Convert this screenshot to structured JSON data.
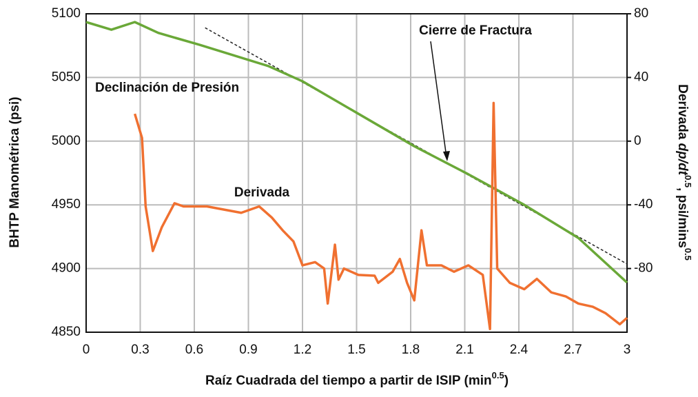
{
  "chart_data": {
    "type": "line",
    "xlabel": [
      "Raíz Cuadrada del tiempo a partir de ISIP (min",
      "0.5",
      ")"
    ],
    "ylabel": "BHTP Manométrica (psi)",
    "y2label": [
      "Derivada ",
      "dp/dt",
      "0.5",
      ", psi/mins",
      "0.5"
    ],
    "xlim": [
      0,
      3
    ],
    "xticks": [
      0,
      0.3,
      0.6,
      0.9,
      1.2,
      1.5,
      1.8,
      2.1,
      2.4,
      2.7,
      3
    ],
    "ylim": [
      4850,
      5100
    ],
    "yticks": [
      4850,
      4900,
      4950,
      5000,
      5050,
      5100
    ],
    "y2lim": [
      -120,
      80
    ],
    "y2ticks": [
      -80,
      -40,
      0,
      40,
      80
    ],
    "grid": true,
    "series": [
      {
        "name": "Declinación de Presión",
        "color": "#6aa838",
        "x": [
          0,
          0.14,
          0.27,
          0.4,
          0.63,
          1.01,
          1.2,
          1.51,
          1.82,
          2.12,
          2.43,
          2.73,
          3
        ],
        "values": [
          5093.5,
          5087.5,
          5093.5,
          5085,
          5075.6,
          5059,
          5047,
          5021.5,
          4996,
          4974,
          4950,
          4924,
          4889
        ]
      },
      {
        "name": "Derivada",
        "color": "#f07030",
        "axis": "y2",
        "x": [
          0.27,
          0.31,
          0.33,
          0.37,
          0.42,
          0.49,
          0.54,
          0.67,
          0.86,
          0.96,
          1.03,
          1.09,
          1.15,
          1.2,
          1.27,
          1.32,
          1.34,
          1.38,
          1.4,
          1.43,
          1.51,
          1.6,
          1.62,
          1.7,
          1.74,
          1.78,
          1.82,
          1.86,
          1.89,
          1.97,
          2.04,
          2.12,
          2.2,
          2.24,
          2.26,
          2.28,
          2.35,
          2.43,
          2.5,
          2.58,
          2.66,
          2.73,
          2.81,
          2.88,
          2.96,
          3
        ],
        "values": [
          17.2,
          2,
          -41,
          -69,
          -54,
          -39,
          -41,
          -41,
          -45,
          -41,
          -48,
          -56,
          -63,
          -78,
          -76,
          -80,
          -102,
          -65,
          -87,
          -80,
          -84,
          -84.5,
          -89,
          -82,
          -74,
          -89,
          -100,
          -56,
          -78,
          -78,
          -82,
          -78,
          -84,
          -118,
          24,
          -80,
          -89,
          -93,
          -86.5,
          -95,
          -97.5,
          -102,
          -104,
          -108,
          -115,
          -111
        ]
      }
    ],
    "trend_line": {
      "color": "#222222",
      "x": [
        0.66,
        3
      ],
      "values": [
        5089,
        4903.6
      ]
    },
    "annotations": [
      "Cierre de Fractura"
    ]
  }
}
